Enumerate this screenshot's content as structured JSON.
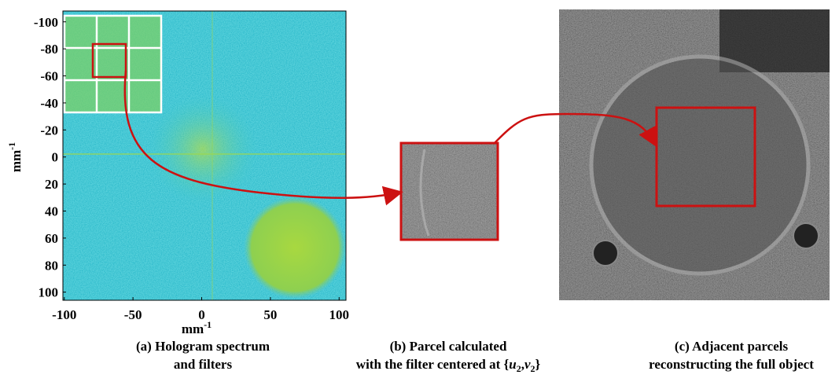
{
  "panel_a": {
    "ylabel": {
      "text": "mm",
      "sup": "-1"
    },
    "xlabel": {
      "text": "mm",
      "sup": "-1"
    },
    "xlim": [
      -101,
      105
    ],
    "ylim": [
      -108,
      106
    ],
    "xticks": [
      -100,
      -50,
      0,
      50,
      100
    ],
    "yticks": [
      -100,
      -80,
      -60,
      -40,
      -20,
      0,
      20,
      40,
      60,
      80,
      100
    ],
    "caption": [
      "(a) Hologram spectrum",
      "and filters"
    ]
  },
  "panel_b": {
    "caption_line1": "(b) Parcel calculated",
    "caption_line2": {
      "prefix": "with the filter centered at {",
      "u": "u",
      "u_sub": "2",
      "sep": ",",
      "v": "v",
      "v_sub": "2",
      "suffix": "}"
    }
  },
  "panel_c": {
    "caption": [
      "(c) Adjacent parcels",
      "reconstructing the full object"
    ]
  }
}
